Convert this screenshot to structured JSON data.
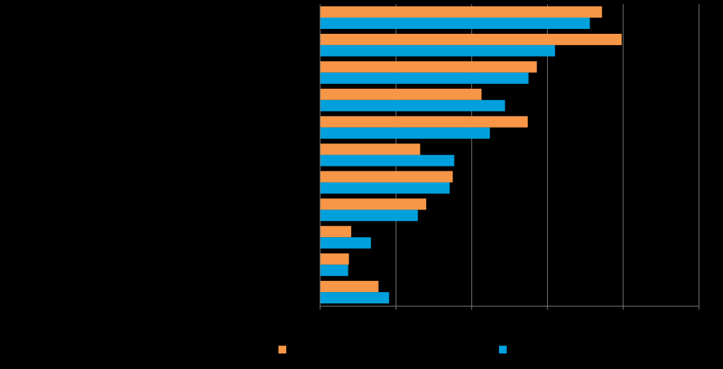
{
  "colors": {
    "background": "#000000",
    "series_a": "#F79646",
    "series_b": "#00A0DC",
    "grid": "#808080",
    "axis": "#808080"
  },
  "chart_data": {
    "type": "bar",
    "orientation": "horizontal",
    "title": "",
    "xlabel": "",
    "ylabel": "",
    "categories": [
      "",
      "",
      "",
      "",
      "",
      "",
      "",
      "",
      "",
      "",
      ""
    ],
    "xlim": [
      0,
      50
    ],
    "x_tick_values": [
      0,
      10,
      20,
      30,
      40,
      50
    ],
    "grid": true,
    "legend_position": "bottom",
    "series": [
      {
        "name": "",
        "color": "#F79646",
        "values": [
          37.2,
          39.8,
          28.6,
          21.3,
          27.4,
          13.2,
          17.5,
          14.0,
          4.1,
          3.8,
          7.7
        ]
      },
      {
        "name": "",
        "color": "#00A0DC",
        "values": [
          35.6,
          31.0,
          27.5,
          24.4,
          22.4,
          17.7,
          17.1,
          12.9,
          6.7,
          3.7,
          9.1
        ]
      }
    ]
  }
}
